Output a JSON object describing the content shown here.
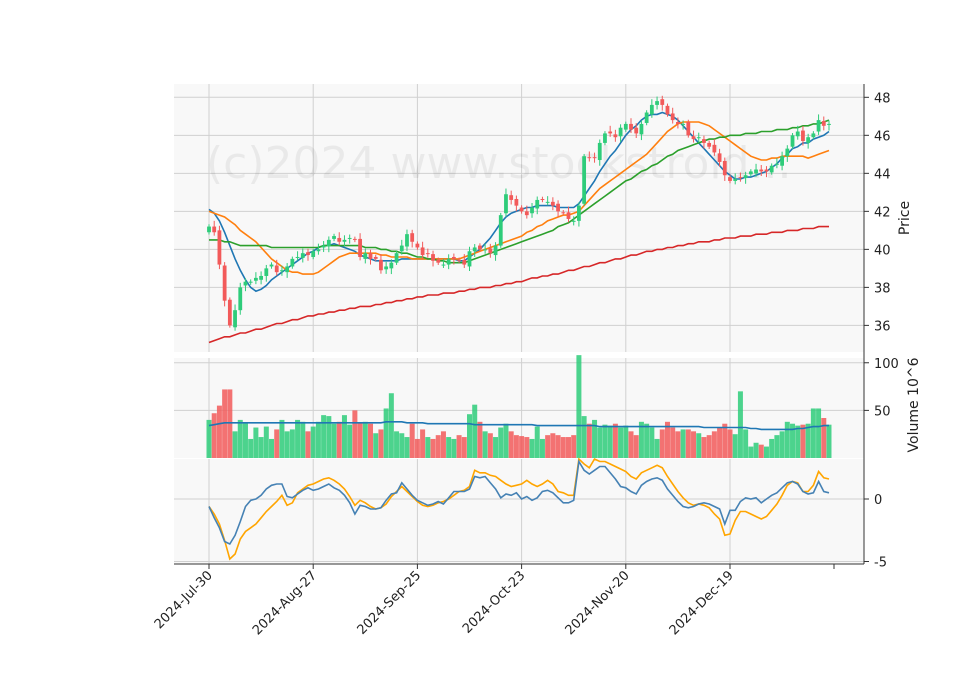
{
  "watermark": "(c)2024 www.stockstroid...",
  "colors": {
    "up": "#2ecc7a",
    "down": "#f25a5a",
    "ma_blue": "#1f77b4",
    "ma_orange": "#ff7f0e",
    "ma_green": "#2ca02c",
    "ma_red": "#d62728",
    "osc_line": "#4682b4",
    "osc_signal": "#ffa500",
    "grid": "#d0d0d0",
    "panel_bg": "#f8f8f8"
  },
  "chart_data": {
    "type": "candlestick",
    "x_tick_labels": [
      "2024-Jul-30",
      "2024-Aug-27",
      "2024-Sep-25",
      "2024-Oct-23",
      "2024-Nov-20",
      "2024-Dec-19"
    ],
    "x_tick_indices": [
      0,
      20,
      40,
      60,
      80,
      100
    ],
    "num_bars": 120,
    "price_panel": {
      "ylabel": "Price",
      "ylim": [
        34.6,
        48.7
      ],
      "yticks": [
        36,
        38,
        40,
        42,
        44,
        46,
        48
      ],
      "closes": [
        41.2,
        40.9,
        39.2,
        37.3,
        36.0,
        36.8,
        38.0,
        38.3,
        38.3,
        38.5,
        38.6,
        39.0,
        39.2,
        38.8,
        38.9,
        39.1,
        39.5,
        39.6,
        39.8,
        39.7,
        39.9,
        40.0,
        40.2,
        40.5,
        40.7,
        40.4,
        40.5,
        40.6,
        40.5,
        39.6,
        39.8,
        39.5,
        39.5,
        38.9,
        39.1,
        39.3,
        39.8,
        40.2,
        40.8,
        40.4,
        40.1,
        39.7,
        39.8,
        39.4,
        39.3,
        39.2,
        39.5,
        39.5,
        39.4,
        39.2,
        39.9,
        40.1,
        40.0,
        40.0,
        39.8,
        40.2,
        41.8,
        42.9,
        42.6,
        42.3,
        42.0,
        41.8,
        42.2,
        42.6,
        42.6,
        42.5,
        42.3,
        42.0,
        41.9,
        41.6,
        41.5,
        42.3,
        44.9,
        44.8,
        44.8,
        45.6,
        46.1,
        46.1,
        45.9,
        46.4,
        46.6,
        46.3,
        46.1,
        46.6,
        47.2,
        47.6,
        47.8,
        47.6,
        47.1,
        46.8,
        46.6,
        46.6,
        46.0,
        45.8,
        45.9,
        45.6,
        45.4,
        45.1,
        44.6,
        43.9,
        43.6,
        43.7,
        43.8,
        43.9,
        44.1,
        44.2,
        44.1,
        44.1,
        44.4,
        44.5,
        44.9,
        45.3,
        46.0,
        46.2,
        45.7,
        45.9,
        46.1,
        46.8,
        46.5,
        46.6
      ],
      "ma_series": [
        {
          "values": [
            42.1,
            41.9,
            41.5,
            40.9,
            40.2,
            39.5,
            38.9,
            38.4,
            38.0,
            37.8,
            37.9,
            38.1,
            38.4,
            38.6,
            38.8,
            39.0,
            39.2,
            39.4,
            39.6,
            39.8,
            39.9,
            40.1,
            40.2,
            40.2,
            40.3,
            40.2,
            40.1,
            40.0,
            39.9,
            39.7,
            39.6,
            39.5,
            39.4,
            39.4,
            39.4,
            39.4,
            39.4,
            39.5,
            39.5,
            39.5,
            39.5,
            39.5,
            39.5,
            39.5,
            39.5,
            39.5,
            39.5,
            39.5,
            39.4,
            39.4,
            39.6,
            39.8,
            40.0,
            40.3,
            40.6,
            41.0,
            41.4,
            41.7,
            41.9,
            42.0,
            42.1,
            42.2,
            42.2,
            42.3,
            42.3,
            42.3,
            42.3,
            42.2,
            42.2,
            42.2,
            42.2,
            42.4,
            42.8,
            43.2,
            43.6,
            44.1,
            44.5,
            44.9,
            45.2,
            45.6,
            46.0,
            46.3,
            46.5,
            46.8,
            47.0,
            47.1,
            47.1,
            47.2,
            47.1,
            47.0,
            46.8,
            46.5,
            46.2,
            45.9,
            45.6,
            45.3,
            45.0,
            44.7,
            44.4,
            44.1,
            43.9,
            43.7,
            43.7,
            43.8,
            43.8,
            43.9,
            44.0,
            44.1,
            44.3,
            44.5,
            44.8,
            45.0,
            45.3,
            45.4,
            45.6,
            45.6,
            45.8,
            45.9,
            46.0,
            46.2
          ]
        },
        {
          "values": [
            42.0,
            41.9,
            41.8,
            41.7,
            41.5,
            41.3,
            41.0,
            40.8,
            40.6,
            40.4,
            40.1,
            39.8,
            39.5,
            39.3,
            39.1,
            38.9,
            38.8,
            38.8,
            38.7,
            38.7,
            38.7,
            38.8,
            39.0,
            39.2,
            39.4,
            39.6,
            39.7,
            39.8,
            39.8,
            39.8,
            39.8,
            39.8,
            39.8,
            39.7,
            39.7,
            39.6,
            39.6,
            39.6,
            39.6,
            39.5,
            39.5,
            39.5,
            39.5,
            39.5,
            39.5,
            39.5,
            39.5,
            39.5,
            39.5,
            39.6,
            39.7,
            39.8,
            39.9,
            40.0,
            40.1,
            40.2,
            40.3,
            40.4,
            40.5,
            40.6,
            40.7,
            40.9,
            41.0,
            41.2,
            41.3,
            41.5,
            41.6,
            41.7,
            41.8,
            41.8,
            41.9,
            42.0,
            42.3,
            42.6,
            42.9,
            43.2,
            43.4,
            43.6,
            43.8,
            44.0,
            44.2,
            44.4,
            44.6,
            44.8,
            45.0,
            45.3,
            45.6,
            45.9,
            46.2,
            46.4,
            46.6,
            46.7,
            46.7,
            46.7,
            46.7,
            46.6,
            46.5,
            46.3,
            46.1,
            45.9,
            45.7,
            45.5,
            45.3,
            45.1,
            44.9,
            44.8,
            44.7,
            44.7,
            44.8,
            44.8,
            44.9,
            44.9,
            44.9,
            44.9,
            44.9,
            44.8,
            44.9,
            45.0,
            45.1,
            45.2
          ]
        },
        {
          "values": [
            40.5,
            40.5,
            40.5,
            40.4,
            40.4,
            40.3,
            40.2,
            40.2,
            40.2,
            40.2,
            40.2,
            40.2,
            40.1,
            40.1,
            40.1,
            40.1,
            40.1,
            40.1,
            40.1,
            40.1,
            40.1,
            40.1,
            40.2,
            40.2,
            40.2,
            40.2,
            40.2,
            40.2,
            40.2,
            40.2,
            40.1,
            40.1,
            40.1,
            40.0,
            40.0,
            39.9,
            39.9,
            39.8,
            39.8,
            39.7,
            39.6,
            39.6,
            39.5,
            39.5,
            39.4,
            39.4,
            39.3,
            39.3,
            39.3,
            39.3,
            39.4,
            39.5,
            39.6,
            39.7,
            39.8,
            39.9,
            40.0,
            40.1,
            40.2,
            40.3,
            40.4,
            40.5,
            40.6,
            40.7,
            40.8,
            40.9,
            41.0,
            41.2,
            41.3,
            41.4,
            41.6,
            41.8,
            42.0,
            42.2,
            42.4,
            42.6,
            42.8,
            43.0,
            43.2,
            43.4,
            43.6,
            43.7,
            43.9,
            44.1,
            44.2,
            44.4,
            44.5,
            44.7,
            44.9,
            45.0,
            45.2,
            45.3,
            45.4,
            45.5,
            45.6,
            45.7,
            45.8,
            45.8,
            45.9,
            45.9,
            46.0,
            46.0,
            46.0,
            46.1,
            46.1,
            46.1,
            46.2,
            46.2,
            46.2,
            46.3,
            46.3,
            46.3,
            46.4,
            46.4,
            46.5,
            46.5,
            46.6,
            46.6,
            46.7,
            46.8
          ]
        },
        {
          "values": [
            35.1,
            35.2,
            35.3,
            35.4,
            35.4,
            35.5,
            35.6,
            35.6,
            35.7,
            35.8,
            35.8,
            35.9,
            36.0,
            36.1,
            36.1,
            36.2,
            36.3,
            36.3,
            36.4,
            36.5,
            36.5,
            36.6,
            36.6,
            36.7,
            36.7,
            36.8,
            36.8,
            36.9,
            36.9,
            37.0,
            37.0,
            37.0,
            37.1,
            37.1,
            37.2,
            37.2,
            37.3,
            37.3,
            37.4,
            37.4,
            37.5,
            37.5,
            37.6,
            37.6,
            37.6,
            37.7,
            37.7,
            37.7,
            37.8,
            37.8,
            37.9,
            37.9,
            38.0,
            38.0,
            38.0,
            38.1,
            38.1,
            38.2,
            38.2,
            38.3,
            38.3,
            38.4,
            38.5,
            38.5,
            38.6,
            38.6,
            38.7,
            38.7,
            38.8,
            38.9,
            38.9,
            39.0,
            39.1,
            39.1,
            39.2,
            39.3,
            39.3,
            39.4,
            39.5,
            39.5,
            39.6,
            39.7,
            39.7,
            39.8,
            39.9,
            39.9,
            40.0,
            40.0,
            40.1,
            40.1,
            40.2,
            40.2,
            40.3,
            40.3,
            40.4,
            40.4,
            40.4,
            40.5,
            40.5,
            40.6,
            40.6,
            40.6,
            40.7,
            40.7,
            40.7,
            40.8,
            40.8,
            40.8,
            40.9,
            40.9,
            40.9,
            41.0,
            41.0,
            41.0,
            41.1,
            41.1,
            41.1,
            41.2,
            41.2,
            41.2
          ]
        }
      ]
    },
    "volume_panel": {
      "ylabel": "Volume  10^6",
      "ylim": [
        0,
        105
      ],
      "yticks": [
        50,
        100
      ],
      "values": [
        40,
        47,
        55,
        72,
        72,
        28,
        40,
        37,
        20,
        32,
        22,
        33,
        20,
        30,
        40,
        28,
        30,
        40,
        38,
        28,
        33,
        38,
        45,
        44,
        36,
        38,
        45,
        35,
        50,
        37,
        38,
        36,
        26,
        30,
        52,
        68,
        28,
        26,
        22,
        36,
        20,
        30,
        22,
        20,
        24,
        28,
        22,
        20,
        24,
        22,
        46,
        56,
        38,
        28,
        26,
        22,
        32,
        36,
        28,
        24,
        23,
        22,
        20,
        33,
        20,
        24,
        26,
        24,
        22,
        22,
        24,
        108,
        44,
        36,
        40,
        32,
        35,
        34,
        36,
        32,
        34,
        28,
        24,
        38,
        36,
        32,
        20,
        30,
        38,
        32,
        28,
        30,
        30,
        28,
        26,
        22,
        24,
        28,
        32,
        36,
        30,
        25,
        70,
        30,
        12,
        16,
        14,
        12,
        20,
        24,
        28,
        38,
        36,
        34,
        35,
        36,
        52,
        52,
        42,
        35
      ],
      "ma_values": [
        34,
        35,
        36,
        37,
        37,
        37,
        37,
        37,
        37,
        37,
        37,
        37,
        37,
        37,
        37,
        37,
        37,
        37,
        37,
        37,
        37,
        37,
        37,
        37,
        37,
        37,
        37,
        37,
        37,
        37,
        37,
        37,
        37,
        37,
        38,
        38,
        38,
        38,
        37,
        37,
        37,
        37,
        36,
        36,
        36,
        36,
        36,
        36,
        36,
        36,
        36,
        35,
        35,
        35,
        35,
        35,
        35,
        35,
        35,
        35,
        35,
        35,
        35,
        34,
        34,
        34,
        34,
        34,
        34,
        34,
        34,
        34,
        34,
        34,
        34,
        33,
        33,
        33,
        33,
        33,
        33,
        33,
        33,
        33,
        33,
        33,
        33,
        33,
        33,
        33,
        33,
        33,
        33,
        33,
        33,
        32,
        32,
        32,
        32,
        32,
        32,
        32,
        32,
        32,
        31,
        31,
        30,
        30,
        30,
        30,
        30,
        30,
        30,
        31,
        31,
        32,
        33,
        33,
        34,
        34
      ]
    },
    "oscillator_panel": {
      "ylim": [
        -5.2,
        3.2
      ],
      "yticks": [
        -5,
        0
      ],
      "line": [
        -0.6,
        -1.5,
        -2.3,
        -3.4,
        -3.6,
        -2.9,
        -1.8,
        -0.6,
        -0.1,
        0.0,
        0.3,
        0.8,
        1.1,
        1.2,
        1.2,
        0.2,
        0.1,
        0.4,
        0.7,
        0.9,
        0.7,
        0.8,
        1.0,
        1.2,
        0.9,
        0.7,
        0.3,
        -0.3,
        -1.2,
        -0.5,
        -0.6,
        -0.8,
        -0.8,
        -0.7,
        -0.1,
        0.4,
        0.5,
        1.3,
        0.8,
        0.3,
        -0.1,
        -0.3,
        -0.5,
        -0.4,
        -0.2,
        -0.4,
        0.1,
        0.6,
        0.6,
        0.6,
        0.8,
        1.8,
        1.7,
        1.8,
        1.3,
        0.8,
        0.1,
        0.4,
        0.3,
        0.5,
        0.0,
        0.2,
        -0.1,
        0.1,
        0.6,
        0.7,
        0.5,
        0.1,
        -0.3,
        -0.3,
        -0.1,
        3.0,
        2.3,
        2.0,
        2.3,
        2.6,
        2.6,
        2.1,
        1.6,
        1.0,
        0.9,
        0.6,
        0.4,
        1.1,
        1.4,
        1.6,
        1.7,
        1.5,
        0.8,
        0.3,
        -0.2,
        -0.6,
        -0.7,
        -0.6,
        -0.4,
        -0.3,
        -0.4,
        -0.6,
        -0.8,
        -2.0,
        -0.9,
        -0.9,
        -0.2,
        0.1,
        0.0,
        0.1,
        -0.3,
        0.0,
        0.3,
        0.5,
        0.9,
        1.3,
        1.4,
        1.2,
        0.6,
        0.4,
        0.5,
        1.4,
        0.6,
        0.5
      ],
      "signal": [
        -0.6,
        -1.2,
        -2.0,
        -3.3,
        -4.8,
        -4.4,
        -3.2,
        -2.6,
        -2.3,
        -2.0,
        -1.5,
        -1.0,
        -0.6,
        -0.2,
        0.3,
        -0.5,
        -0.3,
        0.5,
        0.8,
        1.1,
        1.2,
        1.4,
        1.6,
        1.7,
        1.5,
        1.2,
        0.8,
        0.2,
        -0.5,
        -0.1,
        -0.3,
        -0.6,
        -0.8,
        -0.7,
        -0.4,
        0.2,
        0.6,
        1.0,
        0.6,
        0.2,
        -0.2,
        -0.5,
        -0.6,
        -0.5,
        -0.3,
        -0.2,
        0.0,
        0.3,
        0.6,
        0.7,
        1.0,
        2.3,
        2.1,
        2.1,
        1.9,
        1.8,
        1.5,
        1.2,
        1.0,
        1.1,
        1.2,
        1.5,
        1.2,
        1.0,
        1.2,
        1.5,
        1.2,
        0.6,
        0.5,
        0.3,
        0.3,
        3.2,
        2.8,
        2.5,
        3.2,
        3.0,
        3.0,
        2.8,
        2.6,
        2.4,
        2.2,
        1.8,
        1.6,
        2.1,
        2.3,
        2.5,
        2.7,
        2.5,
        1.8,
        1.2,
        0.6,
        0.1,
        -0.3,
        -0.5,
        -0.4,
        -0.5,
        -0.7,
        -1.2,
        -1.6,
        -2.9,
        -2.8,
        -1.7,
        -1.0,
        -1.0,
        -1.2,
        -1.4,
        -1.6,
        -1.4,
        -0.9,
        -0.4,
        0.3,
        1.1,
        1.4,
        1.3,
        0.6,
        0.6,
        1.1,
        2.2,
        1.7,
        1.6
      ]
    }
  }
}
